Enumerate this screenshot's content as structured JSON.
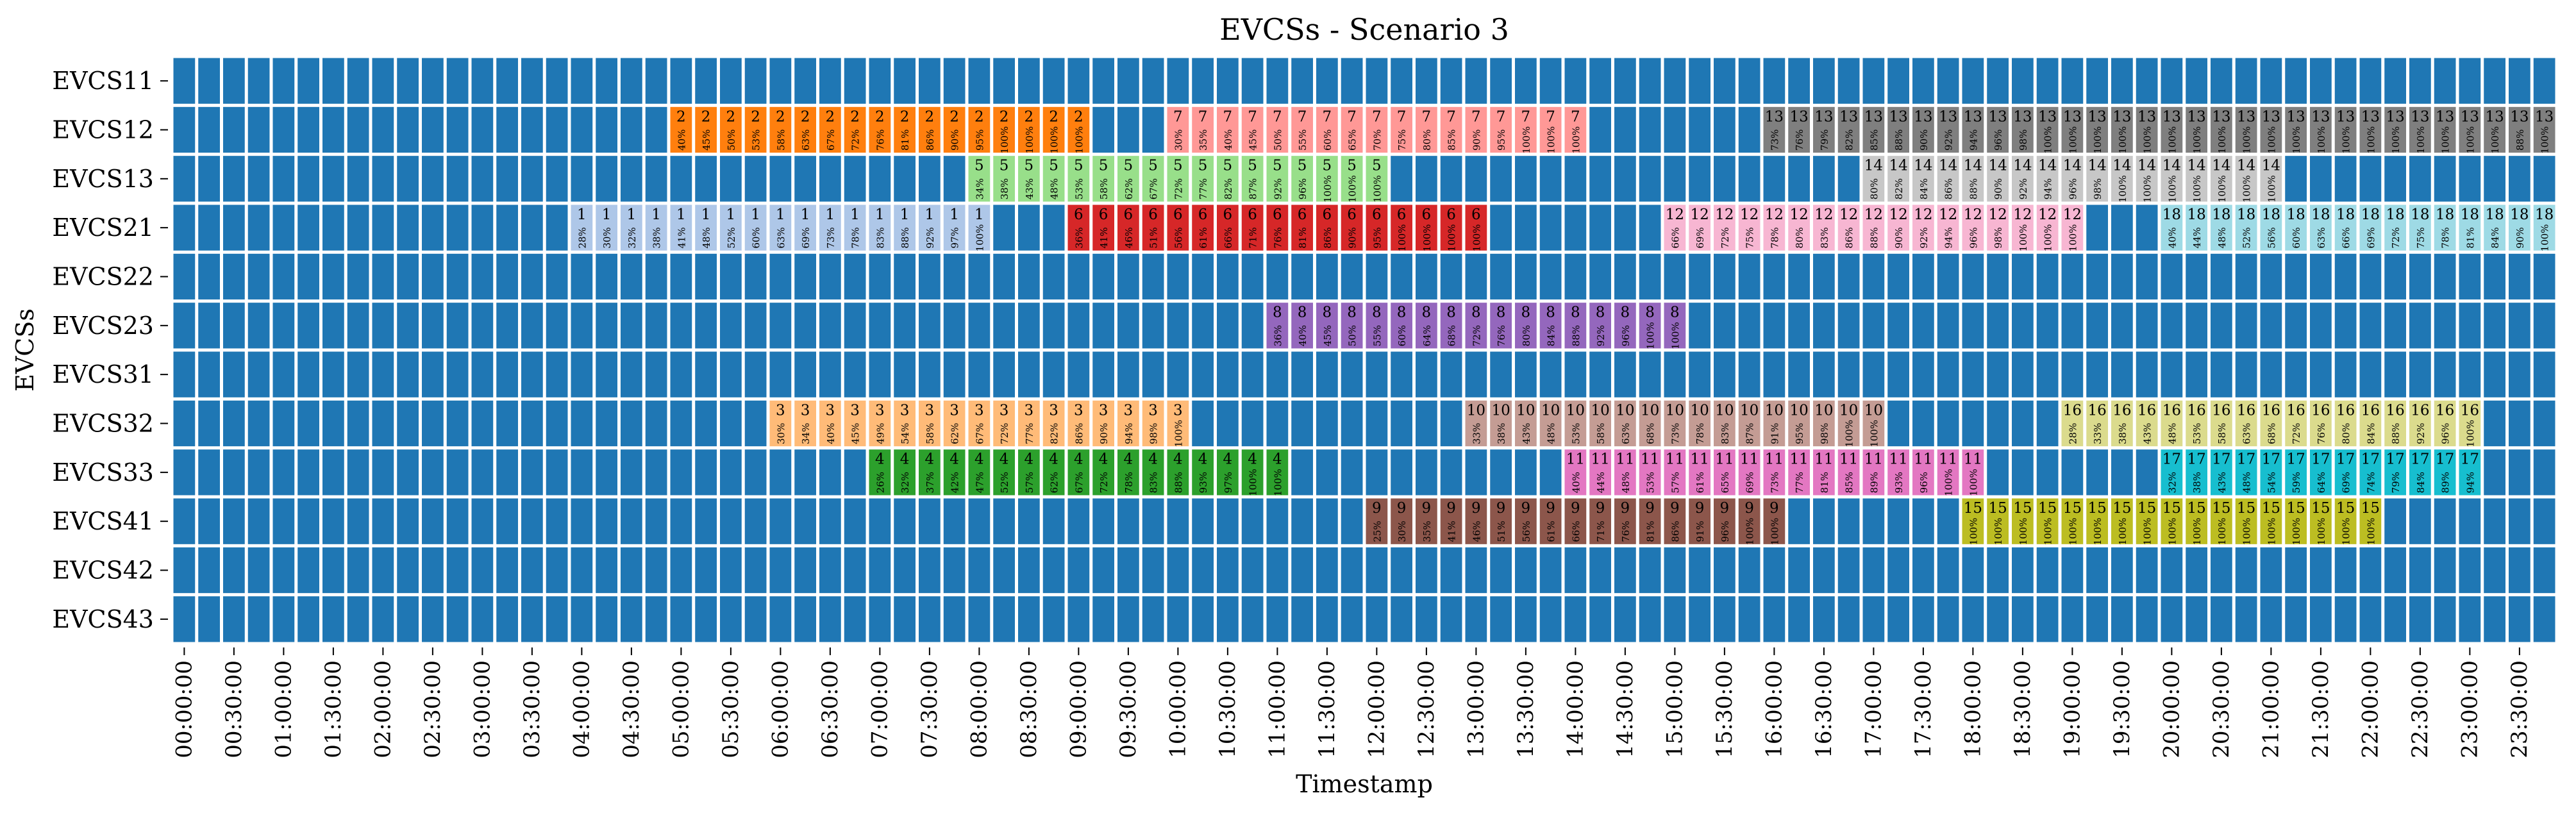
{
  "chart_data": {
    "type": "heatmap",
    "title": "EVCSs - Scenario 3",
    "xlabel": "Timestamp",
    "ylabel": "EVCSs",
    "rows": [
      "EVCS11",
      "EVCS12",
      "EVCS13",
      "EVCS21",
      "EVCS22",
      "EVCS23",
      "EVCS31",
      "EVCS32",
      "EVCS33",
      "EVCS41",
      "EVCS42",
      "EVCS43"
    ],
    "x_ticks": [
      "00:00:00",
      "00:30:00",
      "01:00:00",
      "01:30:00",
      "02:00:00",
      "02:30:00",
      "03:00:00",
      "03:30:00",
      "04:00:00",
      "04:30:00",
      "05:00:00",
      "05:30:00",
      "06:00:00",
      "06:30:00",
      "07:00:00",
      "07:30:00",
      "08:00:00",
      "08:30:00",
      "09:00:00",
      "09:30:00",
      "10:00:00",
      "10:30:00",
      "11:00:00",
      "11:30:00",
      "12:00:00",
      "12:30:00",
      "13:00:00",
      "13:30:00",
      "14:00:00",
      "14:30:00",
      "15:00:00",
      "15:30:00",
      "16:00:00",
      "16:30:00",
      "17:00:00",
      "17:30:00",
      "18:00:00",
      "18:30:00",
      "19:00:00",
      "19:30:00",
      "20:00:00",
      "20:30:00",
      "21:00:00",
      "21:30:00",
      "22:00:00",
      "22:30:00",
      "23:00:00",
      "23:30:00"
    ],
    "slot_minutes": 15,
    "slots": 96,
    "empty_color": "#1f77b4",
    "sessions": [
      {
        "vehicle": 1,
        "station": "EVCS21",
        "start": "04:00:00",
        "end": "08:00:00",
        "soc": [
          "28%",
          "30%",
          "32%",
          "38%",
          "41%",
          "48%",
          "52%",
          "60%",
          "63%",
          "69%",
          "73%",
          "78%",
          "83%",
          "88%",
          "92%",
          "97%",
          "100%"
        ],
        "color": "#aec7e8"
      },
      {
        "vehicle": 2,
        "station": "EVCS12",
        "start": "05:00:00",
        "end": "09:00:00",
        "soc": [
          "40%",
          "45%",
          "50%",
          "53%",
          "58%",
          "63%",
          "67%",
          "72%",
          "76%",
          "81%",
          "86%",
          "90%",
          "95%",
          "100%",
          "100%",
          "100%",
          "100%"
        ],
        "color": "#ff7f0e"
      },
      {
        "vehicle": 3,
        "station": "EVCS32",
        "start": "06:00:00",
        "end": "10:00:00",
        "soc": [
          "30%",
          "34%",
          "40%",
          "45%",
          "49%",
          "54%",
          "58%",
          "62%",
          "67%",
          "72%",
          "77%",
          "82%",
          "86%",
          "90%",
          "94%",
          "98%",
          "100%"
        ],
        "color": "#ffbb78"
      },
      {
        "vehicle": 4,
        "station": "EVCS33",
        "start": "07:00:00",
        "end": "11:00:00",
        "soc": [
          "26%",
          "32%",
          "37%",
          "42%",
          "47%",
          "52%",
          "57%",
          "62%",
          "67%",
          "72%",
          "78%",
          "83%",
          "88%",
          "93%",
          "97%",
          "100%",
          "100%"
        ],
        "color": "#2ca02c"
      },
      {
        "vehicle": 5,
        "station": "EVCS13",
        "start": "08:00:00",
        "end": "12:00:00",
        "soc": [
          "34%",
          "38%",
          "43%",
          "48%",
          "53%",
          "58%",
          "62%",
          "67%",
          "72%",
          "77%",
          "82%",
          "87%",
          "92%",
          "96%",
          "100%",
          "100%",
          "100%"
        ],
        "color": "#98df8a"
      },
      {
        "vehicle": 6,
        "station": "EVCS21",
        "start": "09:00:00",
        "end": "13:00:00",
        "soc": [
          "36%",
          "41%",
          "46%",
          "51%",
          "56%",
          "61%",
          "66%",
          "71%",
          "76%",
          "81%",
          "86%",
          "90%",
          "95%",
          "100%",
          "100%",
          "100%",
          "100%"
        ],
        "color": "#d62728"
      },
      {
        "vehicle": 7,
        "station": "EVCS12",
        "start": "10:00:00",
        "end": "14:00:00",
        "soc": [
          "30%",
          "35%",
          "40%",
          "45%",
          "50%",
          "55%",
          "60%",
          "65%",
          "70%",
          "75%",
          "80%",
          "85%",
          "90%",
          "95%",
          "100%",
          "100%",
          "100%"
        ],
        "color": "#ff9896"
      },
      {
        "vehicle": 8,
        "station": "EVCS23",
        "start": "11:00:00",
        "end": "15:00:00",
        "soc": [
          "36%",
          "40%",
          "45%",
          "50%",
          "55%",
          "60%",
          "64%",
          "68%",
          "72%",
          "76%",
          "80%",
          "84%",
          "88%",
          "92%",
          "96%",
          "100%",
          "100%"
        ],
        "color": "#9467bd"
      },
      {
        "vehicle": 9,
        "station": "EVCS41",
        "start": "12:00:00",
        "end": "16:00:00",
        "soc": [
          "25%",
          "30%",
          "35%",
          "41%",
          "46%",
          "51%",
          "56%",
          "61%",
          "66%",
          "71%",
          "76%",
          "81%",
          "86%",
          "91%",
          "96%",
          "100%",
          "100%"
        ],
        "color": "#8c564b"
      },
      {
        "vehicle": 10,
        "station": "EVCS32",
        "start": "13:00:00",
        "end": "17:00:00",
        "soc": [
          "33%",
          "38%",
          "43%",
          "48%",
          "53%",
          "58%",
          "63%",
          "68%",
          "73%",
          "78%",
          "83%",
          "87%",
          "91%",
          "95%",
          "98%",
          "100%",
          "100%"
        ],
        "color": "#c49c94"
      },
      {
        "vehicle": 11,
        "station": "EVCS33",
        "start": "14:00:00",
        "end": "18:00:00",
        "soc": [
          "40%",
          "44%",
          "48%",
          "53%",
          "57%",
          "61%",
          "65%",
          "69%",
          "73%",
          "77%",
          "81%",
          "85%",
          "89%",
          "93%",
          "96%",
          "100%",
          "100%"
        ],
        "color": "#e377c2"
      },
      {
        "vehicle": 12,
        "station": "EVCS21",
        "start": "15:00:00",
        "end": "19:00:00",
        "soc": [
          "66%",
          "69%",
          "72%",
          "75%",
          "78%",
          "80%",
          "83%",
          "86%",
          "88%",
          "90%",
          "92%",
          "94%",
          "96%",
          "98%",
          "100%",
          "100%",
          "100%"
        ],
        "color": "#f7b6d2"
      },
      {
        "vehicle": 13,
        "station": "EVCS12",
        "start": "16:00:00",
        "end": "23:45:00",
        "soc": [
          "73%",
          "76%",
          "79%",
          "82%",
          "85%",
          "88%",
          "90%",
          "92%",
          "94%",
          "96%",
          "98%",
          "100%",
          "100%",
          "100%",
          "100%",
          "100%",
          "100%",
          "100%",
          "100%",
          "100%",
          "100%",
          "100%",
          "100%",
          "100%",
          "100%",
          "100%",
          "100%",
          "100%",
          "100%",
          "100%",
          "88%",
          "100%"
        ],
        "color": "#7f7f7f"
      },
      {
        "vehicle": 14,
        "station": "EVCS13",
        "start": "17:00:00",
        "end": "21:00:00",
        "soc": [
          "80%",
          "82%",
          "84%",
          "86%",
          "88%",
          "90%",
          "92%",
          "94%",
          "96%",
          "98%",
          "100%",
          "100%",
          "100%",
          "100%",
          "100%",
          "100%",
          "100%"
        ],
        "color": "#c7c7c7"
      },
      {
        "vehicle": 15,
        "station": "EVCS41",
        "start": "18:00:00",
        "end": "22:00:00",
        "soc": [
          "100%",
          "100%",
          "100%",
          "100%",
          "100%",
          "100%",
          "100%",
          "100%",
          "100%",
          "100%",
          "100%",
          "100%",
          "100%",
          "100%",
          "100%",
          "100%",
          "100%"
        ],
        "color": "#bcbd22"
      },
      {
        "vehicle": 16,
        "station": "EVCS32",
        "start": "19:00:00",
        "end": "23:00:00",
        "soc": [
          "28%",
          "33%",
          "38%",
          "43%",
          "48%",
          "53%",
          "58%",
          "63%",
          "68%",
          "72%",
          "76%",
          "80%",
          "84%",
          "88%",
          "92%",
          "96%",
          "100%"
        ],
        "color": "#dbdb8d"
      },
      {
        "vehicle": 17,
        "station": "EVCS33",
        "start": "20:00:00",
        "end": "23:00:00",
        "soc": [
          "32%",
          "38%",
          "43%",
          "48%",
          "54%",
          "59%",
          "64%",
          "69%",
          "74%",
          "79%",
          "84%",
          "89%",
          "94%"
        ],
        "color": "#17becf"
      },
      {
        "vehicle": 18,
        "station": "EVCS21",
        "start": "20:00:00",
        "end": "23:45:00",
        "soc": [
          "40%",
          "44%",
          "48%",
          "52%",
          "56%",
          "60%",
          "63%",
          "66%",
          "69%",
          "72%",
          "75%",
          "78%",
          "81%",
          "84%",
          "90%",
          "100%"
        ],
        "color": "#9edae5"
      }
    ]
  }
}
